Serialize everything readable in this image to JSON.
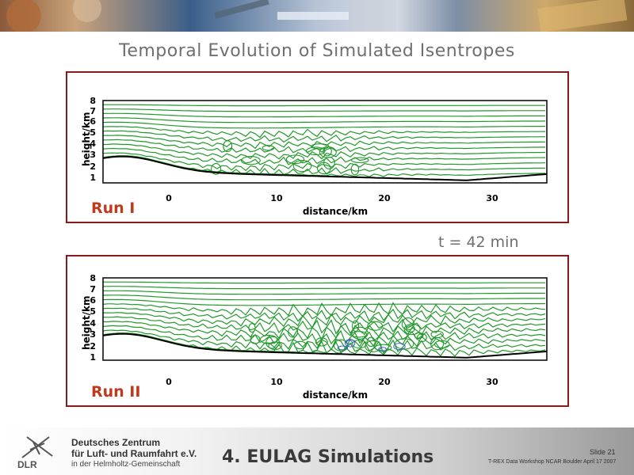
{
  "slide": {
    "title": "Temporal Evolution of Simulated Isentropes",
    "time_label": "t = 42 min",
    "section_title": "4. EULAG Simulations",
    "slide_number": "Slide 21",
    "event_line": "T-REX Data Workshop NCAR Boulder April 17 2007"
  },
  "institution": {
    "logo_text": "DLR",
    "name_line1": "Deutsches Zentrum",
    "name_line2": "für Luft- und Raumfahrt e.V.",
    "name_line3": "in der Helmholtz-Gemeinschaft"
  },
  "colors": {
    "isentrope": "#22992b",
    "terrain": "#000000",
    "panel_border": "#8b1a1a",
    "run_label": "#c0391b",
    "secondary_contour": "#3a5fcd"
  },
  "panels": [
    {
      "run_label": "Run I",
      "xlabel": "distance/km",
      "ylabel": "height/km",
      "x_ticks": [
        "0",
        "10",
        "20",
        "30"
      ],
      "y_ticks": [
        "1",
        "2",
        "3",
        "4",
        "5",
        "6",
        "7",
        "8"
      ]
    },
    {
      "run_label": "Run II",
      "xlabel": "distance/km",
      "ylabel": "height/km",
      "x_ticks": [
        "0",
        "10",
        "20",
        "30"
      ],
      "y_ticks": [
        "1",
        "2",
        "3",
        "4",
        "5",
        "6",
        "7",
        "8"
      ]
    }
  ]
}
